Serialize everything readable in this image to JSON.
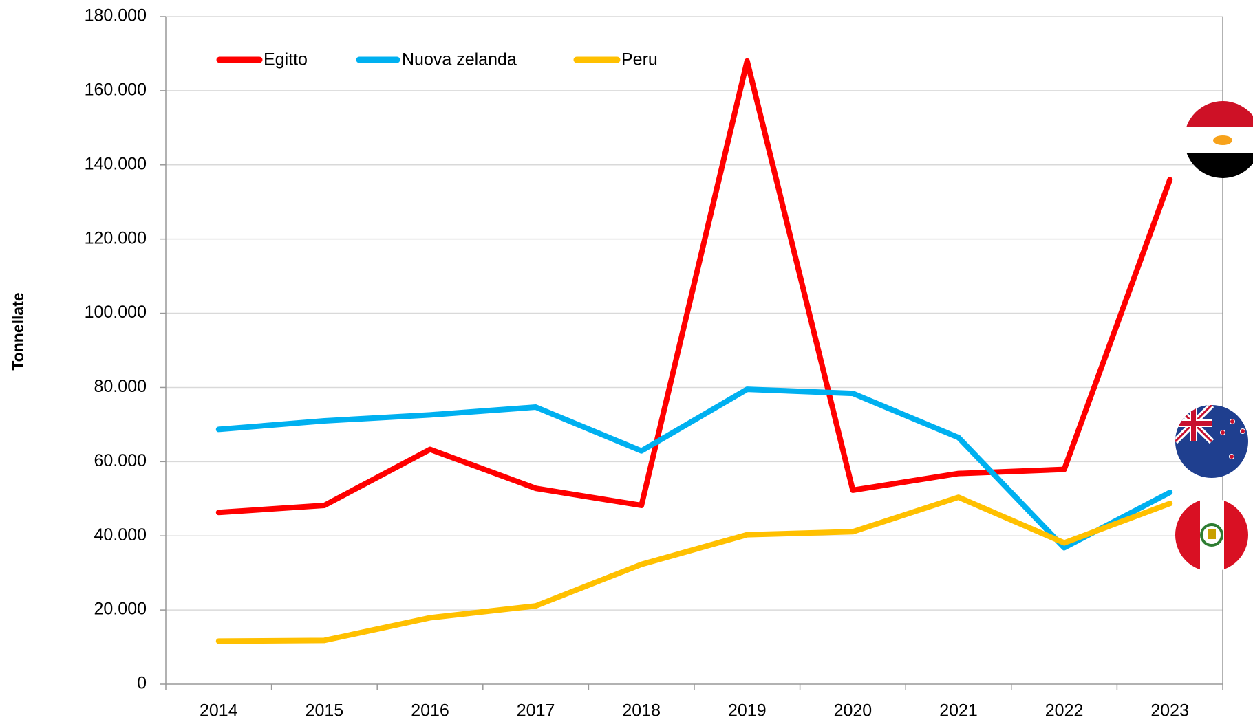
{
  "chart_data": {
    "type": "line",
    "y_label": "Tonnellate",
    "categories": [
      "2014",
      "2015",
      "2016",
      "2017",
      "2018",
      "2019",
      "2020",
      "2021",
      "2022",
      "2023"
    ],
    "series": [
      {
        "name": "Egitto",
        "color": "#ff0000",
        "values": [
          46300,
          48200,
          63300,
          52800,
          48200,
          168000,
          52300,
          56800,
          57900,
          136000
        ]
      },
      {
        "name": "Nuova zelanda",
        "color": "#00b0f0",
        "values": [
          68700,
          71000,
          72600,
          74700,
          62900,
          79500,
          78400,
          66500,
          36800,
          51700
        ]
      },
      {
        "name": "Peru",
        "color": "#ffc000",
        "values": [
          11600,
          11800,
          17900,
          21100,
          32300,
          40300,
          41100,
          50400,
          38100,
          48700
        ]
      }
    ],
    "ylim": [
      0,
      180000
    ],
    "yticks": [
      0,
      {
        "value": 20000,
        "label": "20.000"
      },
      {
        "value": 40000,
        "label": "40.000"
      },
      {
        "value": 60000,
        "label": "60.000"
      },
      {
        "value": 80000,
        "label": "80.000"
      },
      {
        "value": 100000,
        "label": "100.000"
      },
      {
        "value": 120000,
        "label": "120.000"
      },
      {
        "value": 140000,
        "label": "140.000"
      },
      {
        "value": 160000,
        "label": "160.000"
      },
      {
        "value": 180000,
        "label": "180.000"
      }
    ],
    "grid": true,
    "legend": "top-left"
  }
}
